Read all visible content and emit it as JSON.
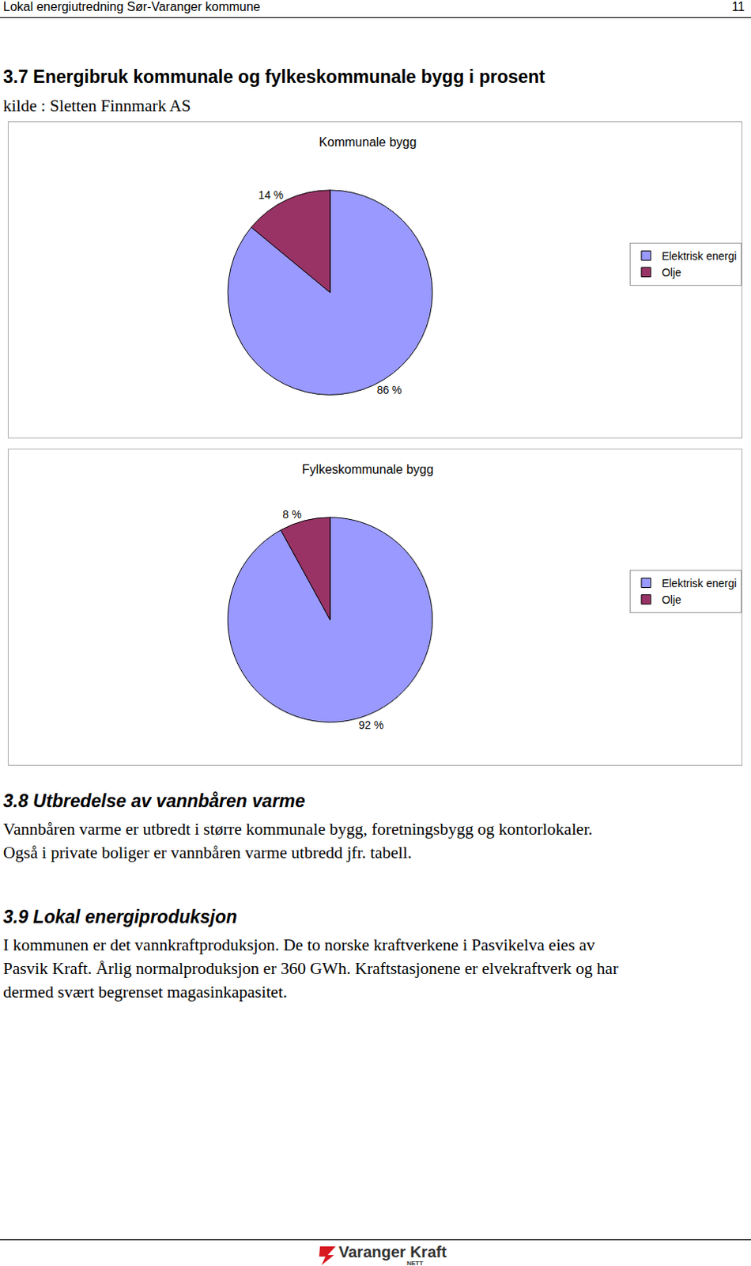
{
  "header": {
    "left": "Lokal energiutredning Sør-Varanger kommune",
    "page": 11
  },
  "section_3_7": {
    "heading": "3.7 Energibruk kommunale og fylkeskommunale bygg i prosent",
    "source": "kilde : Sletten Finnmark AS"
  },
  "chart_data": [
    {
      "type": "pie",
      "title": "Kommunale bygg",
      "categories": [
        "Elektrisk energi",
        "Olje"
      ],
      "values": [
        86,
        14
      ],
      "value_labels": [
        "86 %",
        "14 %"
      ],
      "colors": [
        "#9999ff",
        "#993366"
      ],
      "data_labels": true,
      "legend": "right"
    },
    {
      "type": "pie",
      "title": "Fylkeskommunale bygg",
      "categories": [
        "Elektrisk energi",
        "Olje"
      ],
      "values": [
        92,
        8
      ],
      "value_labels": [
        "92 %",
        "8 %"
      ],
      "colors": [
        "#9999ff",
        "#993366"
      ],
      "data_labels": true,
      "legend": "right"
    }
  ],
  "section_3_8": {
    "heading": "3.8 Utbredelse av vannbåren varme",
    "lines": [
      "Vannbåren varme er utbredt i større kommunale bygg, foretningsbygg og kontorlokaler.",
      "Også i private boliger er vannbåren varme utbredd jfr. tabell."
    ]
  },
  "section_3_9": {
    "heading": "3.9 Lokal energiproduksjon",
    "lines": [
      "I kommunen er det vannkraftproduksjon. De to norske kraftverkene i Pasvikelva eies av",
      "Pasvik Kraft. Årlig normalproduksjon er 360 GWh. Kraftstasjonene er elvekraftverk og har",
      "dermed svært begrenset magasinkapasitet."
    ]
  },
  "footer": {
    "logo": "Varanger Kraft",
    "sub": "NETT"
  }
}
